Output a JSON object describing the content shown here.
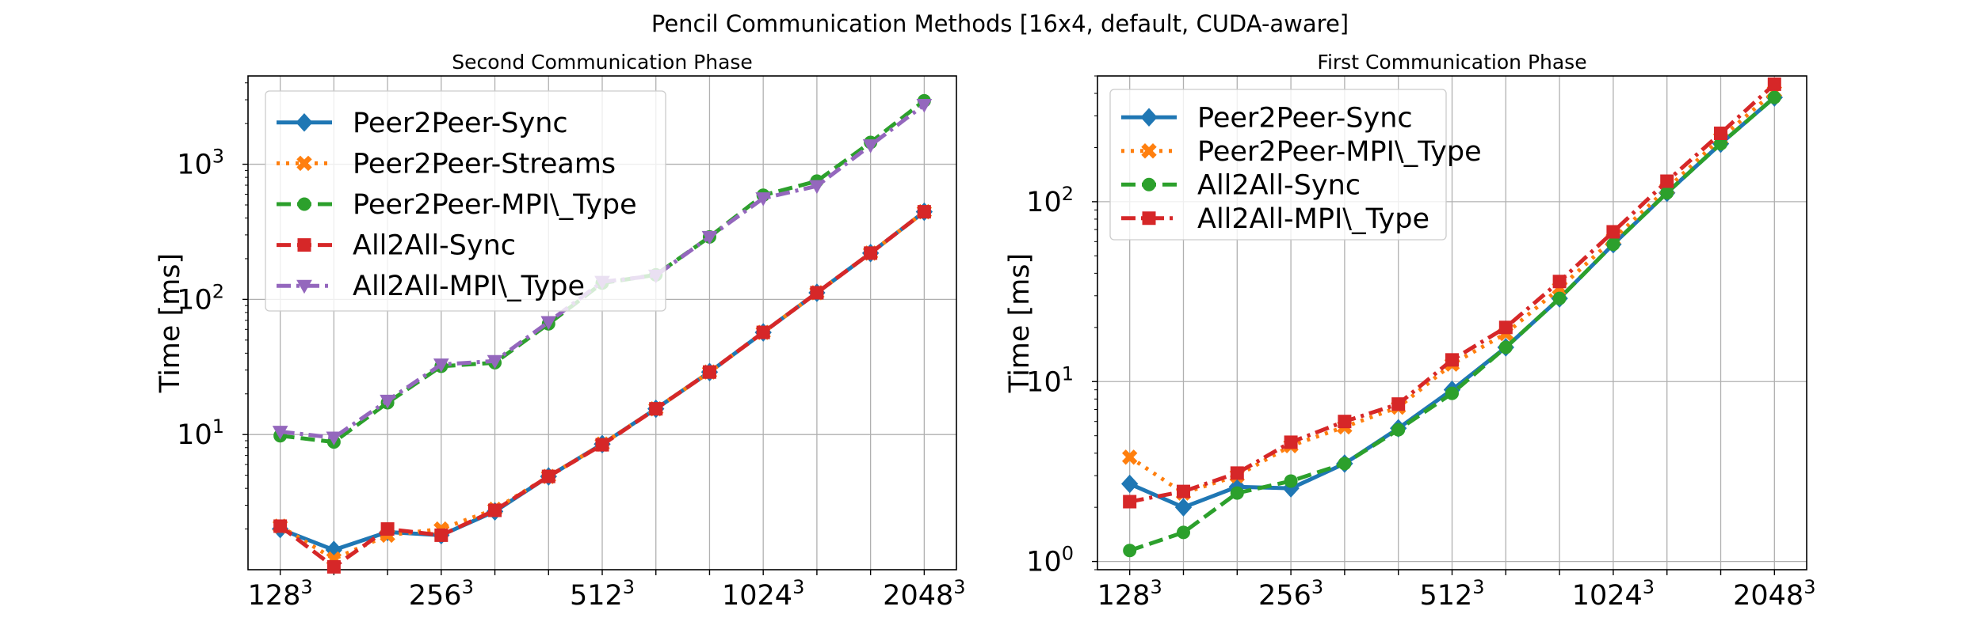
{
  "figure": {
    "suptitle": "Pencil Communication Methods [16x4, default, CUDA-aware]"
  },
  "chart_data": [
    {
      "type": "line",
      "title": "Second Communication Phase",
      "xlabel": "",
      "ylabel": "Time [ms]",
      "yscale": "log",
      "ylim": [
        1.0,
        4500
      ],
      "xlim": [
        -0.6,
        12.6
      ],
      "grid": true,
      "legend_position": "top-left",
      "x": [
        0,
        1,
        2,
        3,
        4,
        5,
        6,
        7,
        8,
        9,
        10,
        11,
        12
      ],
      "x_tick_labels": [
        {
          "pos": 0,
          "base": "128",
          "exp": "3"
        },
        {
          "pos": 3,
          "base": "256",
          "exp": "3"
        },
        {
          "pos": 6,
          "base": "512",
          "exp": "3"
        },
        {
          "pos": 9,
          "base": "1024",
          "exp": "3"
        },
        {
          "pos": 12,
          "base": "2048",
          "exp": "3"
        }
      ],
      "y_tick_labels": [
        {
          "value": 10,
          "base": "10",
          "exp": "1"
        },
        {
          "value": 100,
          "base": "10",
          "exp": "2"
        },
        {
          "value": 1000,
          "base": "10",
          "exp": "3"
        }
      ],
      "series": [
        {
          "name": "Peer2Peer-Sync",
          "color": "#1f77b4",
          "dash": "solid",
          "marker": "diamond",
          "values": [
            2.0,
            1.4,
            1.9,
            1.8,
            2.7,
            4.9,
            8.5,
            15.5,
            29,
            57,
            112,
            220,
            445
          ]
        },
        {
          "name": "Peer2Peer-Streams",
          "color": "#ff7f0e",
          "dash": "dotted",
          "marker": "x",
          "values": [
            2.1,
            1.2,
            1.8,
            2.0,
            2.8,
            4.9,
            8.5,
            15.5,
            29,
            57,
            112,
            220,
            445
          ]
        },
        {
          "name": "Peer2Peer-MPI\\_Type",
          "color": "#2ca02c",
          "dash": "dashed",
          "marker": "circle",
          "values": [
            9.8,
            8.8,
            17.2,
            32,
            34,
            66,
            132,
            152,
            290,
            590,
            750,
            1450,
            2950
          ]
        },
        {
          "name": "All2All-Sync",
          "color": "#d62728",
          "dash": "dashed",
          "marker": "square",
          "values": [
            2.1,
            1.05,
            2.0,
            1.8,
            2.75,
            4.9,
            8.4,
            15.5,
            29,
            57,
            112,
            220,
            445
          ]
        },
        {
          "name": "All2All-MPI\\_Type",
          "color": "#9467bd",
          "dash": "dashdot",
          "marker": "triangle",
          "values": [
            10.5,
            9.5,
            17.8,
            33,
            35,
            68,
            135,
            150,
            290,
            560,
            690,
            1380,
            2750
          ]
        }
      ]
    },
    {
      "type": "line",
      "title": "First Communication Phase",
      "xlabel": "",
      "ylabel": "Time [ms]",
      "yscale": "log",
      "ylim": [
        0.9,
        500
      ],
      "xlim": [
        -0.6,
        12.6
      ],
      "grid": true,
      "legend_position": "top-left",
      "x": [
        0,
        1,
        2,
        3,
        4,
        5,
        6,
        7,
        8,
        9,
        10,
        11,
        12
      ],
      "x_tick_labels": [
        {
          "pos": 0,
          "base": "128",
          "exp": "3"
        },
        {
          "pos": 3,
          "base": "256",
          "exp": "3"
        },
        {
          "pos": 6,
          "base": "512",
          "exp": "3"
        },
        {
          "pos": 9,
          "base": "1024",
          "exp": "3"
        },
        {
          "pos": 12,
          "base": "2048",
          "exp": "3"
        }
      ],
      "y_tick_labels": [
        {
          "value": 1,
          "base": "10",
          "exp": "0"
        },
        {
          "value": 10,
          "base": "10",
          "exp": "1"
        },
        {
          "value": 100,
          "base": "10",
          "exp": "2"
        }
      ],
      "series": [
        {
          "name": "Peer2Peer-Sync",
          "color": "#1f77b4",
          "dash": "solid",
          "marker": "diamond",
          "values": [
            2.7,
            2.0,
            2.6,
            2.55,
            3.5,
            5.5,
            9.0,
            15.5,
            29,
            58,
            112,
            210,
            380
          ]
        },
        {
          "name": "Peer2Peer-MPI\\_Type",
          "color": "#ff7f0e",
          "dash": "dotted",
          "marker": "x",
          "values": [
            3.8,
            2.4,
            3.0,
            4.4,
            5.6,
            7.2,
            12.5,
            18.5,
            33,
            62,
            118,
            225,
            410
          ]
        },
        {
          "name": "All2All-Sync",
          "color": "#2ca02c",
          "dash": "dashed",
          "marker": "circle",
          "values": [
            1.15,
            1.45,
            2.4,
            2.8,
            3.5,
            5.4,
            8.6,
            15.5,
            29,
            58,
            112,
            210,
            380
          ]
        },
        {
          "name": "All2All-MPI\\_Type",
          "color": "#d62728",
          "dash": "dashdot",
          "marker": "square",
          "values": [
            2.15,
            2.45,
            3.1,
            4.6,
            6.0,
            7.5,
            13.2,
            20,
            36,
            68,
            130,
            240,
            450
          ]
        }
      ]
    }
  ]
}
